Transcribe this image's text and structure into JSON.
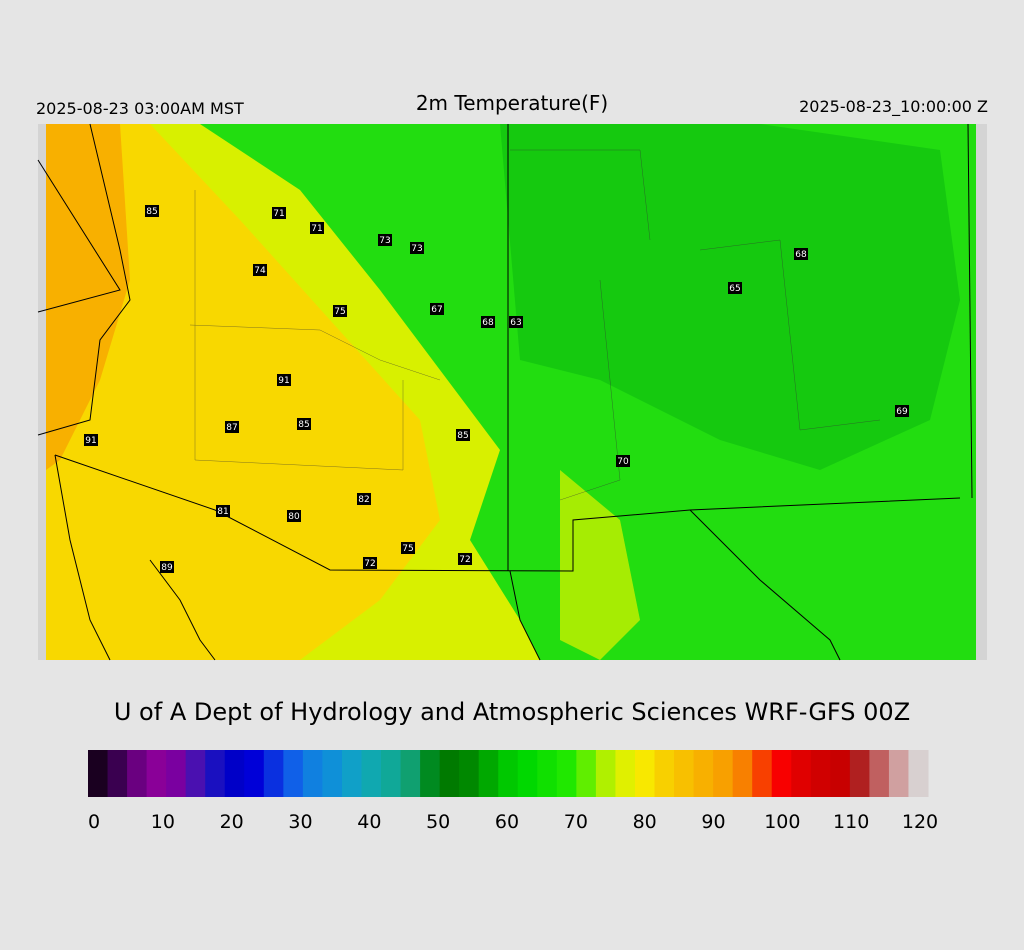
{
  "header": {
    "left": "2025-08-23 03:00AM MST",
    "title": "2m Temperature(F)",
    "right": "2025-08-23_10:00:00 Z"
  },
  "stations": [
    85,
    71,
    71,
    73,
    73,
    74,
    75,
    67,
    68,
    63,
    68,
    65,
    91,
    87,
    85,
    85,
    91,
    69,
    70,
    82,
    81,
    80,
    75,
    72,
    72,
    89
  ],
  "credit": "U of A Dept of Hydrology and Atmospheric Sciences WRF-GFS 00Z",
  "colorbar": {
    "range": [
      0,
      120
    ],
    "ticks": [
      0,
      10,
      20,
      30,
      40,
      50,
      60,
      70,
      80,
      90,
      100,
      110,
      120
    ],
    "colors": [
      "#1a0020",
      "#3a0050",
      "#6a0080",
      "#8a0098",
      "#7a00a0",
      "#4a10b0",
      "#1a10c0",
      "#0000c8",
      "#0000d8",
      "#0a30e0",
      "#1060e8",
      "#1080e0",
      "#0f90d8",
      "#10a0c8",
      "#10a8b0",
      "#10a898",
      "#10a070",
      "#008a20",
      "#007a00",
      "#008800",
      "#00a800",
      "#00c800",
      "#00d800",
      "#10e000",
      "#20e800",
      "#60ee00",
      "#b0f000",
      "#e0f000",
      "#f8e800",
      "#f8d000",
      "#f8c000",
      "#f8b000",
      "#f8a000",
      "#f88000",
      "#f84000",
      "#f80000",
      "#e00000",
      "#d00000",
      "#c80000",
      "#b02020",
      "#c06060",
      "#d0a0a0",
      "#d8d0d0"
    ]
  }
}
